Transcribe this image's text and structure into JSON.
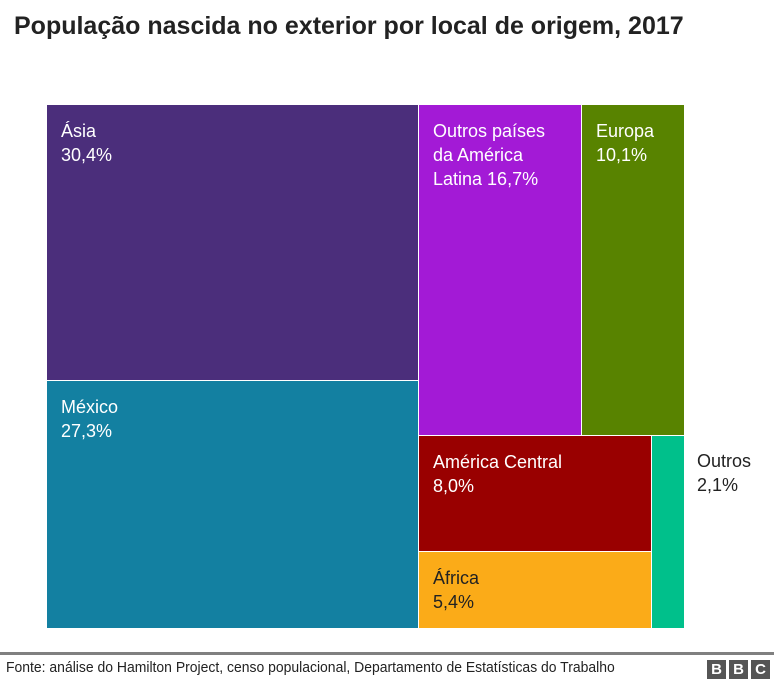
{
  "chart_data": {
    "type": "treemap",
    "title": "População nascida no exterior por local de origem, 2017",
    "items": [
      {
        "label": "Ásia",
        "value_label": "30,4%",
        "value": 30.4,
        "color": "#4b2e7b",
        "text_color": "#ffffff"
      },
      {
        "label": "México",
        "value_label": "27,3%",
        "value": 27.3,
        "color": "#1380a1",
        "text_color": "#ffffff"
      },
      {
        "label": "Outros países da América Latina",
        "value_label": "16,7%",
        "value": 16.7,
        "color": "#a31ad6",
        "text_color": "#ffffff"
      },
      {
        "label": "Europa",
        "value_label": "10,1%",
        "value": 10.1,
        "color": "#588300",
        "text_color": "#ffffff"
      },
      {
        "label": "América Central",
        "value_label": "8,0%",
        "value": 8.0,
        "color": "#990000",
        "text_color": "#ffffff"
      },
      {
        "label": "África",
        "value_label": "5,4%",
        "value": 5.4,
        "color": "#fbab18",
        "text_color": "#222222"
      },
      {
        "label": "Outros",
        "value_label": "2,1%",
        "value": 2.1,
        "color": "#00c08b",
        "text_color": "#222222"
      }
    ]
  },
  "footer": {
    "source": "Fonte: análise do Hamilton Project, censo populacional, Departamento de Estatísticas do Trabalho",
    "logo": [
      "B",
      "B",
      "C"
    ]
  }
}
